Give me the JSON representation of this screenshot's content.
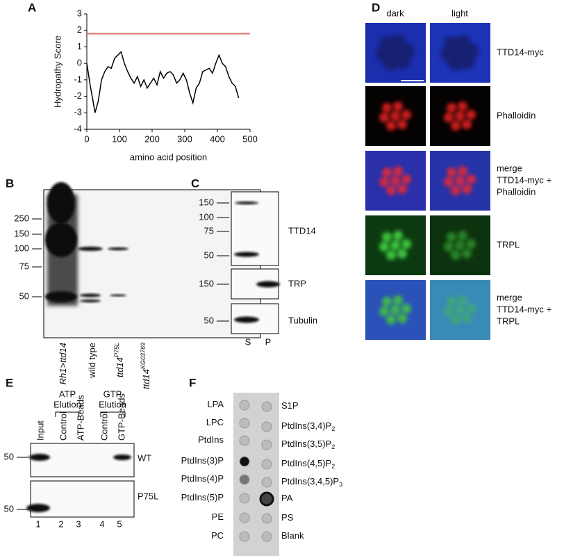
{
  "panels": [
    "A",
    "B",
    "C",
    "D",
    "E",
    "F"
  ],
  "chart_data": {
    "type": "line",
    "y_label": "Hydropathy Score",
    "x_label": "amino acid position",
    "xlim": [
      0,
      500
    ],
    "ylim": [
      -4,
      3
    ],
    "xticks": [
      0,
      100,
      200,
      300,
      400,
      500
    ],
    "yticks": [
      -4,
      -3,
      -2,
      -1,
      0,
      1,
      2,
      3
    ],
    "threshold": {
      "value": 1.8,
      "color": "#e07070"
    },
    "x": [
      0,
      10,
      20,
      25,
      35,
      45,
      55,
      65,
      75,
      85,
      95,
      105,
      115,
      125,
      135,
      145,
      155,
      165,
      175,
      185,
      195,
      205,
      215,
      225,
      235,
      245,
      255,
      265,
      275,
      285,
      295,
      305,
      315,
      325,
      335,
      345,
      355,
      365,
      375,
      385,
      395,
      405,
      415,
      425,
      435,
      445,
      455,
      465
    ],
    "series": [
      {
        "color": "#000000",
        "values": [
          0,
          -1.3,
          -2.4,
          -3.0,
          -2.3,
          -1.0,
          -0.5,
          -0.2,
          -0.3,
          0.3,
          0.5,
          0.7,
          0.0,
          -0.5,
          -0.9,
          -1.2,
          -0.8,
          -1.4,
          -1.0,
          -1.5,
          -1.2,
          -0.9,
          -1.3,
          -0.5,
          -0.9,
          -0.6,
          -0.5,
          -0.7,
          -1.2,
          -1.0,
          -0.6,
          -1.0,
          -1.8,
          -2.4,
          -1.5,
          -1.2,
          -0.5,
          -0.4,
          -0.3,
          -0.6,
          0.0,
          0.5,
          0.0,
          -0.2,
          -0.8,
          -1.2,
          -1.4,
          -2.1
        ]
      }
    ]
  },
  "blot_b": {
    "mw": [
      "250",
      "150",
      "100",
      "75",
      "50"
    ],
    "lanes": [
      {
        "text": "Rh1>ttd14"
      },
      {
        "text": "wild type"
      },
      {
        "text": "ttd14",
        "sup": "P75L"
      },
      {
        "text": "ttd14",
        "sup": "KG03769"
      }
    ]
  },
  "blot_c": {
    "panels": [
      {
        "label": "TTD14",
        "mw": [
          "150",
          "100",
          "75",
          "50"
        ]
      },
      {
        "label": "TRP",
        "mw": [
          "150"
        ]
      },
      {
        "label": "Tubulin",
        "mw": [
          "50"
        ]
      }
    ],
    "lanes": [
      "S",
      "P"
    ]
  },
  "images_d": {
    "columns": [
      "dark",
      "light"
    ],
    "rows": [
      [
        "TTD14-myc"
      ],
      [
        "Phalloidin"
      ],
      [
        "merge",
        "TTD14-myc +",
        "Phalloidin"
      ],
      [
        "TRPL"
      ],
      [
        "merge",
        "TTD14-myc +",
        "TRPL"
      ]
    ]
  },
  "blot_e": {
    "groups": [
      [
        "ATP",
        "Elution"
      ],
      [
        "GTP",
        "Elution"
      ]
    ],
    "lanes": [
      "Input",
      "Control",
      "ATP-Beads",
      "Control",
      "GTP-Beads"
    ],
    "panels": [
      {
        "label": "WT",
        "mw": "50"
      },
      {
        "label": "P75L",
        "mw": "50"
      }
    ],
    "numbers": [
      "1",
      "2",
      "3",
      "4",
      "5"
    ]
  },
  "array_f": {
    "left": [
      {
        "text": "LPA"
      },
      {
        "text": "LPC"
      },
      {
        "text": "PtdIns"
      },
      {
        "text": "PtdIns(3)P"
      },
      {
        "text": "PtdIns(4)P"
      },
      {
        "text": "PtdIns(5)P"
      },
      {
        "text": "PE"
      },
      {
        "text": "PC"
      }
    ],
    "right": [
      {
        "text": "S1P"
      },
      {
        "text": "PtdIns(3,4)P",
        "sub": "2"
      },
      {
        "text": "PtdIns(3,5)P",
        "sub": "2"
      },
      {
        "text": "PtdIns(4,5)P",
        "sub": "2"
      },
      {
        "text": "PtdIns(3,4,5)P",
        "sub": "3"
      },
      {
        "text": "PA"
      },
      {
        "text": "PS"
      },
      {
        "text": "Blank"
      }
    ]
  }
}
